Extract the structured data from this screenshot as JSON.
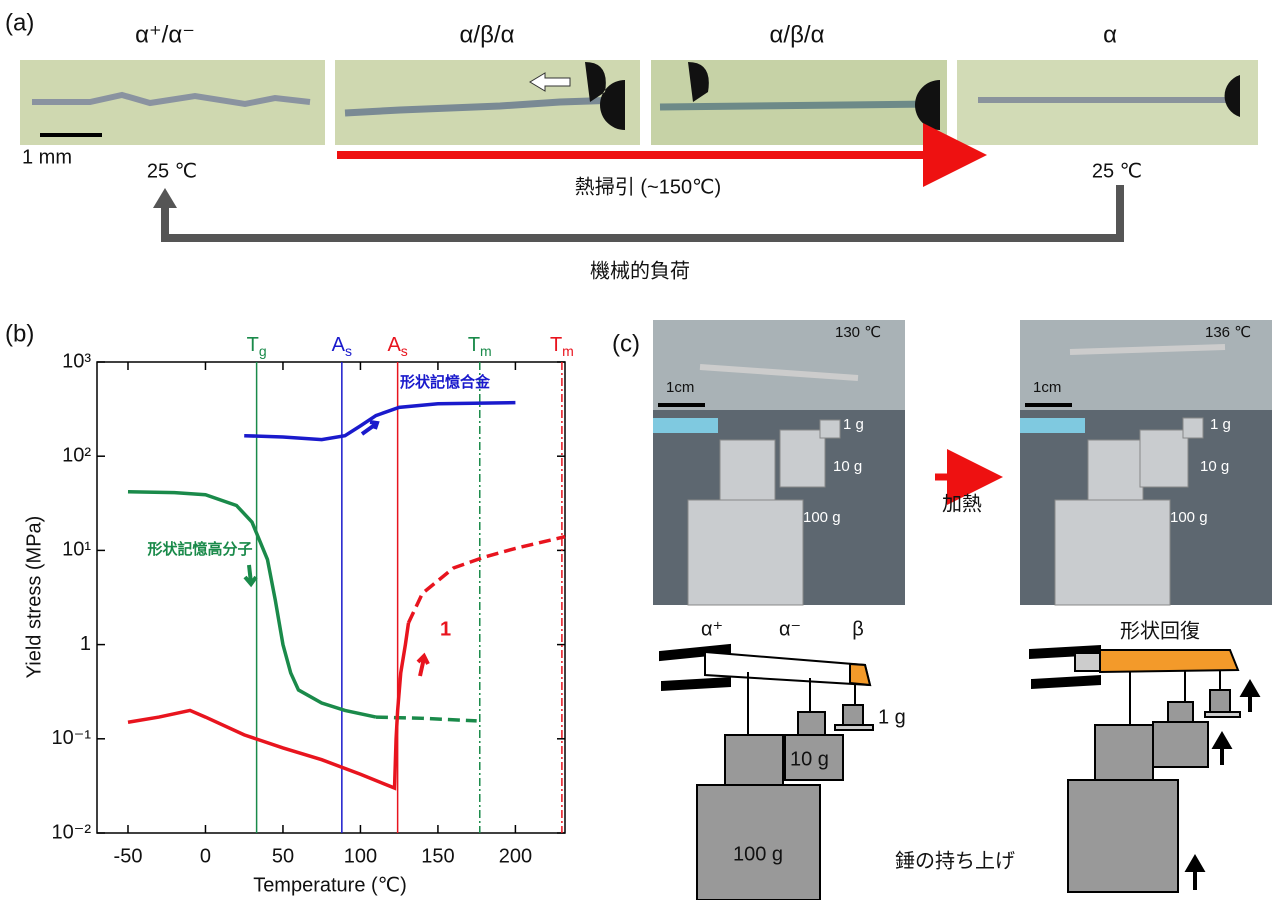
{
  "panel_a": {
    "label": "(a)",
    "states": [
      "α⁺/α⁻",
      "α/β/α",
      "α/β/α",
      "α"
    ],
    "scale_bar": "1 mm",
    "temps": [
      "25 ℃",
      "25 ℃"
    ],
    "heating": "熱掃引 (~150℃)",
    "loading": "機械的負荷"
  },
  "panel_b": {
    "label": "(b)"
  },
  "chart_data": {
    "type": "line",
    "xlabel": "Temperature (℃)",
    "ylabel": "Yield stress (MPa)",
    "xlim": [
      -70,
      232
    ],
    "ylim": [
      0.01,
      1000
    ],
    "log_y": true,
    "xticks": [
      -50,
      0,
      50,
      100,
      150,
      200
    ],
    "yticks": [
      {
        "value": 0.01,
        "label": "10⁻²"
      },
      {
        "value": 0.1,
        "label": "10⁻¹"
      },
      1,
      {
        "value": 10,
        "label": "10¹"
      },
      {
        "value": 100,
        "label": "10²"
      },
      {
        "value": 1000,
        "label": "10³"
      }
    ],
    "series": [
      {
        "name": "形状記憶合金",
        "color": "#1a1acc",
        "dash": false,
        "x": [
          25,
          50,
          75,
          90,
          100,
          110,
          125,
          150,
          200
        ],
        "values": [
          165,
          160,
          150,
          165,
          210,
          270,
          330,
          360,
          370
        ]
      },
      {
        "name": "形状記憶高分子",
        "color": "#1a8a4a",
        "dash": false,
        "x": [
          -50,
          -20,
          0,
          20,
          30,
          40,
          45,
          50,
          55,
          60,
          75,
          90,
          110
        ],
        "values": [
          42,
          41,
          39,
          30,
          20,
          8,
          3,
          1.0,
          0.5,
          0.33,
          0.24,
          0.2,
          0.17
        ]
      },
      {
        "color": "#1a8a4a",
        "dash": true,
        "x": [
          110,
          140,
          175
        ],
        "values": [
          0.17,
          0.165,
          0.155
        ]
      },
      {
        "color": "#e8141e",
        "dash": false,
        "x": [
          -50,
          -30,
          -10,
          0,
          25,
          50,
          75,
          100,
          122,
          123,
          124,
          126,
          129,
          131
        ],
        "values": [
          0.15,
          0.17,
          0.2,
          0.17,
          0.11,
          0.08,
          0.06,
          0.042,
          0.03,
          0.1,
          0.2,
          0.5,
          1.0,
          1.7
        ]
      },
      {
        "color": "#e8141e",
        "dash": true,
        "x": [
          131,
          140,
          160,
          180,
          200,
          232
        ],
        "values": [
          1.7,
          3.5,
          6.5,
          8.5,
          10.5,
          14
        ]
      }
    ],
    "vlines": [
      {
        "x": 33,
        "label": "T",
        "sub": "g",
        "color": "#1a8a4a",
        "style": "solid"
      },
      {
        "x": 88,
        "label": "A",
        "sub": "s",
        "color": "#1a1acc",
        "style": "solid"
      },
      {
        "x": 124,
        "label": "A",
        "sub": "s",
        "color": "#e8141e",
        "style": "solid"
      },
      {
        "x": 177,
        "label": "T",
        "sub": "m",
        "color": "#1a8a4a",
        "style": "dashdot"
      },
      {
        "x": 230,
        "label": "T",
        "sub": "m",
        "color": "#e8141e",
        "style": "dashdot"
      }
    ],
    "annotations": [
      "1"
    ]
  },
  "panel_c": {
    "label": "(c)",
    "photos": [
      {
        "temp": "130 ℃",
        "scale": "1cm",
        "weights": [
          "1 g",
          "10 g",
          "100 g"
        ]
      },
      {
        "temp": "136 ℃",
        "scale": "1cm",
        "weights": [
          "1 g",
          "10 g",
          "100 g"
        ]
      }
    ],
    "heating": "加熱",
    "diagram": {
      "alpha_plus": "α⁺",
      "alpha_minus": "α⁻",
      "beta": "β",
      "weights": [
        "1 g",
        "10 g",
        "100 g"
      ],
      "recovery": "形状回復",
      "lifting": "錘の持ち上げ"
    }
  }
}
